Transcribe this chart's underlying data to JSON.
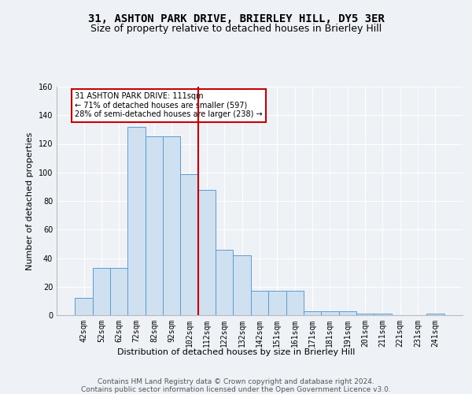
{
  "title": "31, ASHTON PARK DRIVE, BRIERLEY HILL, DY5 3ER",
  "subtitle": "Size of property relative to detached houses in Brierley Hill",
  "xlabel": "Distribution of detached houses by size in Brierley Hill",
  "ylabel": "Number of detached properties",
  "bar_labels": [
    "42sqm",
    "52sqm",
    "62sqm",
    "72sqm",
    "82sqm",
    "92sqm",
    "102sqm",
    "112sqm",
    "122sqm",
    "132sqm",
    "142sqm",
    "151sqm",
    "161sqm",
    "171sqm",
    "181sqm",
    "191sqm",
    "201sqm",
    "211sqm",
    "221sqm",
    "231sqm",
    "241sqm"
  ],
  "bar_values": [
    12,
    33,
    33,
    132,
    125,
    125,
    99,
    88,
    46,
    42,
    17,
    17,
    17,
    3,
    3,
    3,
    1,
    1,
    0,
    0,
    1
  ],
  "bar_color": "#cfe0f0",
  "bar_edge_color": "#5b9bd5",
  "vline_index": 7,
  "vline_color": "#cc0000",
  "annotation_text": "31 ASHTON PARK DRIVE: 111sqm\n← 71% of detached houses are smaller (597)\n28% of semi-detached houses are larger (238) →",
  "annotation_box_color": "#ffffff",
  "annotation_box_edge": "#cc0000",
  "ylim": [
    0,
    160
  ],
  "yticks": [
    0,
    20,
    40,
    60,
    80,
    100,
    120,
    140,
    160
  ],
  "footer_text": "Contains HM Land Registry data © Crown copyright and database right 2024.\nContains public sector information licensed under the Open Government Licence v3.0.",
  "bg_color": "#eef2f7",
  "plot_bg_color": "#eef2f7",
  "grid_color": "#ffffff",
  "title_fontsize": 10,
  "subtitle_fontsize": 9,
  "label_fontsize": 8,
  "tick_fontsize": 7,
  "footer_fontsize": 6.5
}
